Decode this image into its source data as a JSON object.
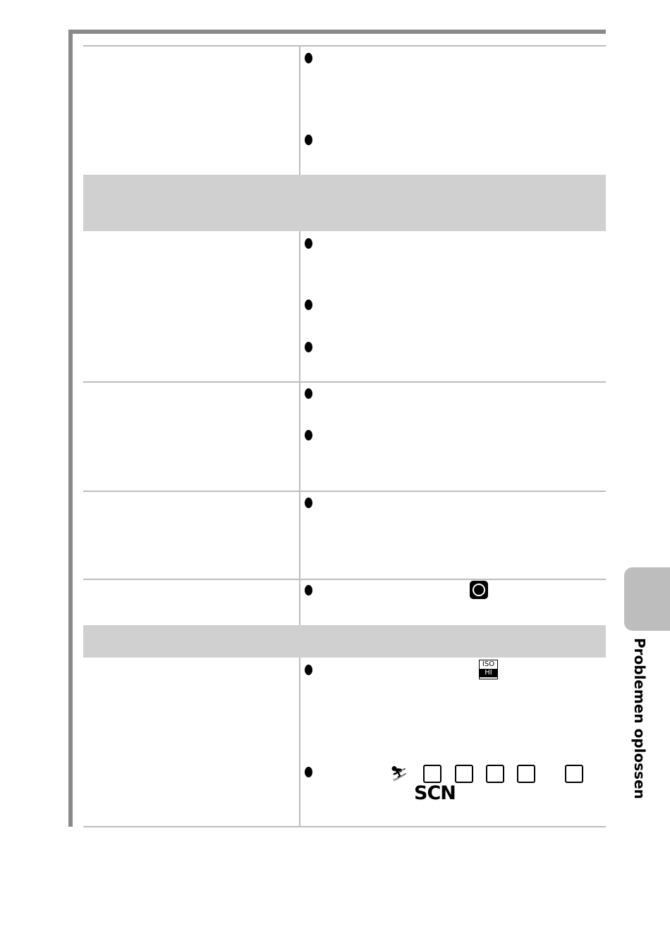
{
  "side_tab": "Problemen oplossen",
  "icons": {
    "iso": "ISO",
    "hi": "HI",
    "scn": "SCN"
  }
}
